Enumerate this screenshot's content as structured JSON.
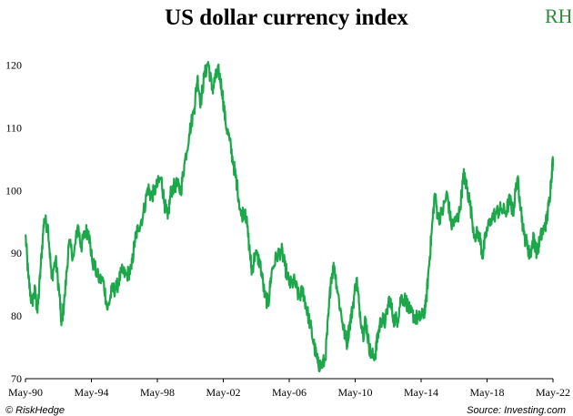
{
  "title": "US dollar currency index",
  "logo": {
    "text": "RH",
    "color": "#2e8b3d"
  },
  "footer": {
    "left": "© RiskHedge",
    "right": "Source: Investing.com"
  },
  "colors": {
    "line": "#1ca84a",
    "axis": "#000000"
  },
  "chart_data": {
    "type": "line",
    "title": "US dollar currency index",
    "xlabel": "",
    "ylabel": "",
    "ylim": [
      70,
      124
    ],
    "yticks": [
      70,
      80,
      90,
      100,
      110,
      120
    ],
    "xlim": [
      1990.37,
      2022.37
    ],
    "xticks": [
      {
        "label": "May-90",
        "x": 1990.37
      },
      {
        "label": "May-94",
        "x": 1994.37
      },
      {
        "label": "May-98",
        "x": 1998.37
      },
      {
        "label": "May-02",
        "x": 2002.37
      },
      {
        "label": "May-06",
        "x": 2006.37
      },
      {
        "label": "May-10",
        "x": 2010.37
      },
      {
        "label": "May-14",
        "x": 2014.37
      },
      {
        "label": "May-18",
        "x": 2018.37
      },
      {
        "label": "May-22",
        "x": 2022.37
      }
    ],
    "series": [
      {
        "name": "US dollar currency index",
        "points": [
          [
            1990.37,
            93
          ],
          [
            1990.55,
            86
          ],
          [
            1990.75,
            82
          ],
          [
            1990.95,
            84
          ],
          [
            1991.1,
            80.5
          ],
          [
            1991.3,
            88
          ],
          [
            1991.5,
            95.5
          ],
          [
            1991.75,
            94
          ],
          [
            1991.95,
            86
          ],
          [
            1992.2,
            89
          ],
          [
            1992.45,
            83
          ],
          [
            1992.55,
            78.5
          ],
          [
            1992.75,
            83
          ],
          [
            1993.0,
            91.5
          ],
          [
            1993.3,
            89.5
          ],
          [
            1993.55,
            94.5
          ],
          [
            1993.75,
            91
          ],
          [
            1994.0,
            93.5
          ],
          [
            1994.2,
            93.5
          ],
          [
            1994.4,
            89
          ],
          [
            1994.8,
            86
          ],
          [
            1995.1,
            85.5
          ],
          [
            1995.35,
            81
          ],
          [
            1995.6,
            84
          ],
          [
            1995.9,
            84.5
          ],
          [
            1996.2,
            87
          ],
          [
            1996.5,
            86.5
          ],
          [
            1996.8,
            87.5
          ],
          [
            1997.0,
            92
          ],
          [
            1997.2,
            94
          ],
          [
            1997.5,
            96
          ],
          [
            1997.8,
            100.5
          ],
          [
            1998.0,
            99
          ],
          [
            1998.3,
            100.5
          ],
          [
            1998.6,
            102
          ],
          [
            1998.8,
            98
          ],
          [
            1999.0,
            95.5
          ],
          [
            1999.2,
            100
          ],
          [
            1999.5,
            101
          ],
          [
            1999.8,
            100
          ],
          [
            2000.0,
            104
          ],
          [
            2000.3,
            109
          ],
          [
            2000.6,
            113
          ],
          [
            2000.8,
            118
          ],
          [
            2001.0,
            114
          ],
          [
            2001.2,
            118
          ],
          [
            2001.45,
            120.5
          ],
          [
            2001.7,
            116
          ],
          [
            2001.9,
            118
          ],
          [
            2002.1,
            119
          ],
          [
            2002.3,
            116
          ],
          [
            2002.5,
            111
          ],
          [
            2002.75,
            108
          ],
          [
            2003.0,
            104
          ],
          [
            2003.2,
            101
          ],
          [
            2003.45,
            96
          ],
          [
            2003.7,
            97
          ],
          [
            2003.95,
            91
          ],
          [
            2004.1,
            87
          ],
          [
            2004.3,
            90
          ],
          [
            2004.6,
            88.5
          ],
          [
            2004.9,
            83
          ],
          [
            2005.1,
            82
          ],
          [
            2005.3,
            87
          ],
          [
            2005.6,
            89.5
          ],
          [
            2005.9,
            90.5
          ],
          [
            2006.1,
            88
          ],
          [
            2006.4,
            85
          ],
          [
            2006.7,
            85.5
          ],
          [
            2006.95,
            83
          ],
          [
            2007.2,
            84
          ],
          [
            2007.4,
            81.5
          ],
          [
            2007.65,
            78.5
          ],
          [
            2007.9,
            75
          ],
          [
            2008.1,
            72.5
          ],
          [
            2008.3,
            72
          ],
          [
            2008.55,
            73
          ],
          [
            2008.75,
            80
          ],
          [
            2008.9,
            86
          ],
          [
            2009.1,
            88
          ],
          [
            2009.3,
            84
          ],
          [
            2009.6,
            79
          ],
          [
            2009.85,
            75.5
          ],
          [
            2010.0,
            78
          ],
          [
            2010.2,
            81
          ],
          [
            2010.45,
            86
          ],
          [
            2010.6,
            82
          ],
          [
            2010.85,
            77
          ],
          [
            2011.0,
            79.5
          ],
          [
            2011.2,
            75.5
          ],
          [
            2011.35,
            73.5
          ],
          [
            2011.6,
            74
          ],
          [
            2011.75,
            77
          ],
          [
            2011.95,
            79.5
          ],
          [
            2012.2,
            79
          ],
          [
            2012.45,
            83
          ],
          [
            2012.7,
            79.5
          ],
          [
            2012.95,
            79.5
          ],
          [
            2013.15,
            83
          ],
          [
            2013.45,
            82.5
          ],
          [
            2013.7,
            80.5
          ],
          [
            2013.95,
            80
          ],
          [
            2014.2,
            79.5
          ],
          [
            2014.45,
            80
          ],
          [
            2014.65,
            81.5
          ],
          [
            2014.85,
            88
          ],
          [
            2015.0,
            93
          ],
          [
            2015.2,
            99.5
          ],
          [
            2015.4,
            95.5
          ],
          [
            2015.65,
            96.5
          ],
          [
            2015.95,
            99.5
          ],
          [
            2016.2,
            94.5
          ],
          [
            2016.45,
            95
          ],
          [
            2016.7,
            96.5
          ],
          [
            2016.95,
            102.5
          ],
          [
            2017.1,
            101
          ],
          [
            2017.3,
            98.5
          ],
          [
            2017.6,
            93
          ],
          [
            2017.9,
            93
          ],
          [
            2018.1,
            89.5
          ],
          [
            2018.3,
            93
          ],
          [
            2018.6,
            95.5
          ],
          [
            2018.95,
            96.5
          ],
          [
            2019.2,
            97
          ],
          [
            2019.5,
            96.5
          ],
          [
            2019.75,
            98.5
          ],
          [
            2019.95,
            96.5
          ],
          [
            2020.2,
            102
          ],
          [
            2020.35,
            99
          ],
          [
            2020.6,
            93
          ],
          [
            2020.85,
            91
          ],
          [
            2020.95,
            89.5
          ],
          [
            2021.2,
            92.5
          ],
          [
            2021.4,
            90
          ],
          [
            2021.6,
            92.5
          ],
          [
            2021.85,
            94
          ],
          [
            2022.0,
            95.5
          ],
          [
            2022.15,
            98.5
          ],
          [
            2022.3,
            103
          ],
          [
            2022.37,
            105
          ]
        ]
      }
    ]
  }
}
